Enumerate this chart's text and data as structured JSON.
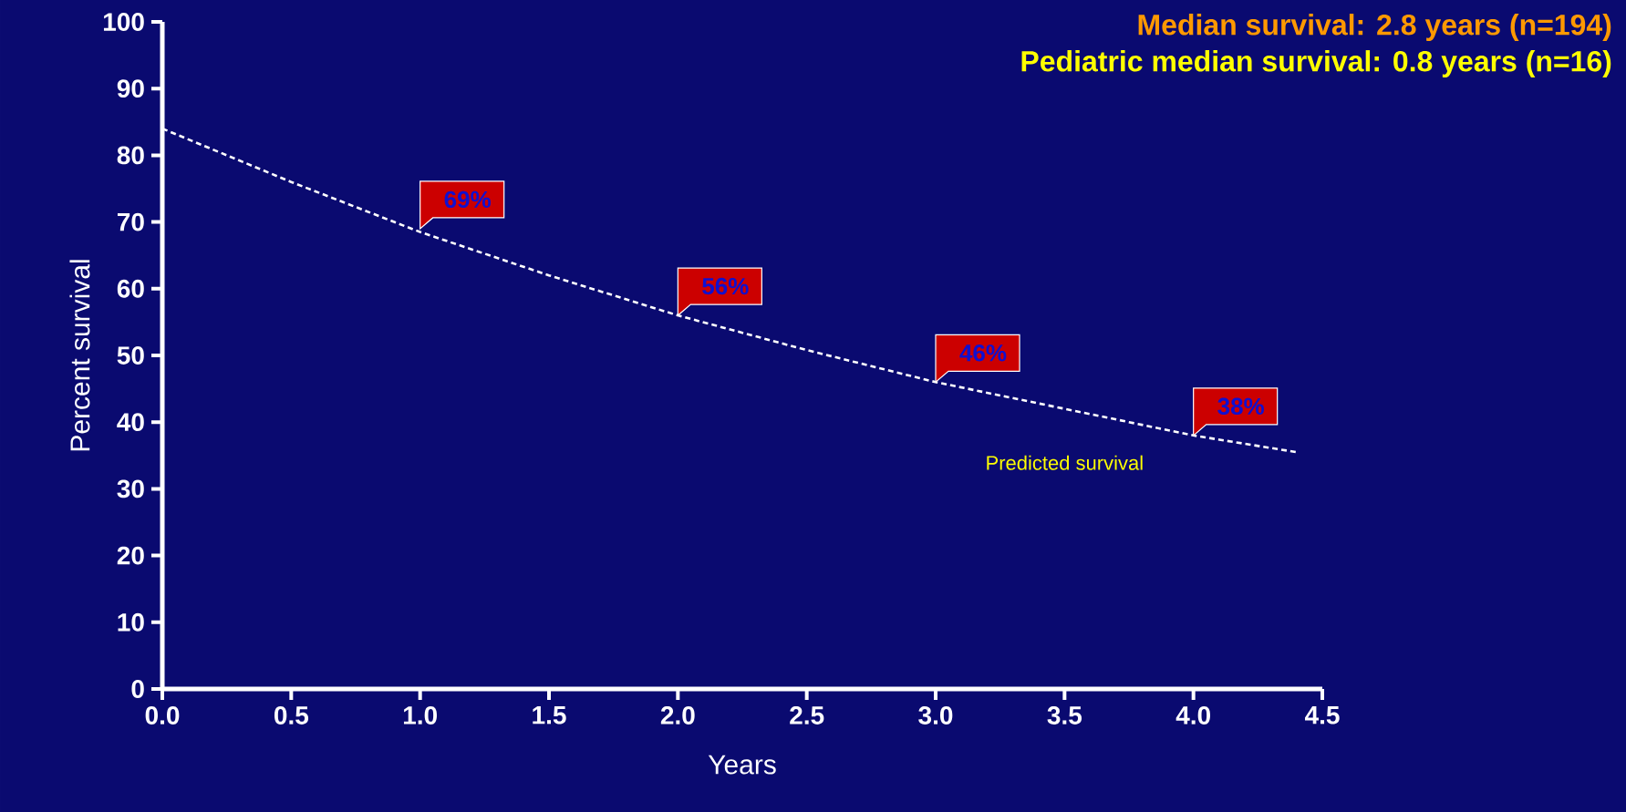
{
  "chart_data": {
    "type": "line",
    "title": "Median survival: 2.8 years (n=194)",
    "subtitle": "Pediatric median survival: 0.8 years (n=16)",
    "xlabel": "Years",
    "ylabel": "Percent survival",
    "x": [
      0,
      0.5,
      1,
      1.5,
      2,
      2.5,
      3,
      3.5,
      4,
      4.4
    ],
    "series": [
      {
        "name": "Predicted survival",
        "color": "#ffffff",
        "values": [
          84,
          76,
          68.5,
          62,
          56,
          50.8,
          46,
          42,
          38,
          35.5
        ]
      }
    ],
    "xlim": [
      0,
      4.5
    ],
    "ylim": [
      0,
      100
    ],
    "xticks": [
      {
        "value": 0,
        "label": "0.0"
      },
      {
        "value": 0.5,
        "label": "0.5"
      },
      {
        "value": 1,
        "label": "1.0"
      },
      {
        "value": 1.5,
        "label": "1.5"
      },
      {
        "value": 2,
        "label": "2.0"
      },
      {
        "value": 2.5,
        "label": "2.5"
      },
      {
        "value": 3,
        "label": "3.0"
      },
      {
        "value": 3.5,
        "label": "3.5"
      },
      {
        "value": 4,
        "label": "4.0"
      },
      {
        "value": 4.5,
        "label": "4.5"
      }
    ],
    "yticks": [
      0,
      10,
      20,
      30,
      40,
      50,
      60,
      70,
      80,
      90,
      100
    ],
    "annotations": [
      {
        "text": "69%",
        "x": 1,
        "y": 69
      },
      {
        "text": "56%",
        "x": 2,
        "y": 56
      },
      {
        "text": "46%",
        "x": 3,
        "y": 46
      },
      {
        "text": "38%",
        "x": 4,
        "y": 38
      }
    ],
    "grid": false,
    "legend": false,
    "marker": "none",
    "line_style": "dashed"
  }
}
